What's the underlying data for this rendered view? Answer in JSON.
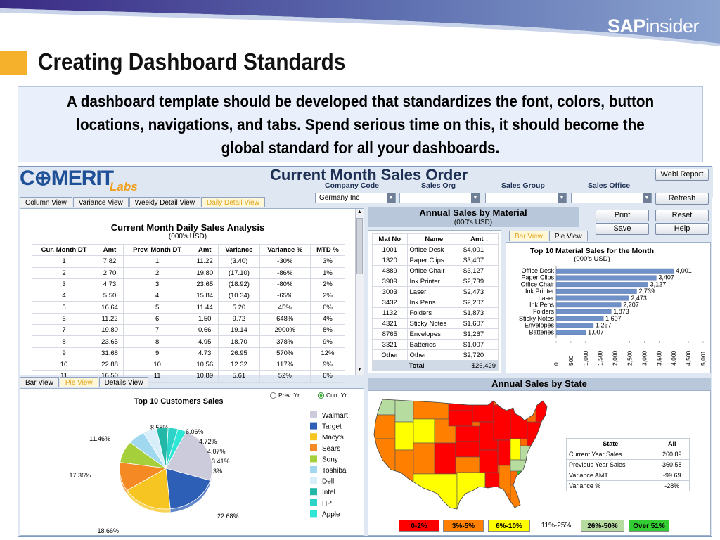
{
  "slide": {
    "brand_sap": "SAP",
    "brand_insider": "insider",
    "title": "Creating Dashboard Standards",
    "intro": "A dashboard template should be developed that standardizes the font, colors, button locations, navigations, and tabs. Spend serious time on this, it should become the global standard for all your dashboards."
  },
  "dashboard": {
    "logo_comerit": "C⊕MERIT",
    "logo_labs": "Labs",
    "title": "Current Month Sales Order",
    "filters": [
      {
        "label": "Company Code",
        "value": "Germany Inc"
      },
      {
        "label": "Sales Org",
        "value": ""
      },
      {
        "label": "Sales Group",
        "value": ""
      },
      {
        "label": "Sales Office",
        "value": ""
      }
    ],
    "buttons": {
      "webi_report": "Webi Report",
      "refresh": "Refresh",
      "print": "Print",
      "reset": "Reset",
      "save": "Save",
      "help": "Help"
    },
    "top_tabs": [
      "Column View",
      "Variance View",
      "Weekly Detail View",
      "Daily Detail View"
    ],
    "daily": {
      "title": "Current Month Daily Sales Analysis",
      "subtitle": "(000's USD)",
      "columns": [
        "Cur. Month DT",
        "Amt",
        "Prev. Month DT",
        "Amt",
        "Variance",
        "Variance %",
        "MTD %"
      ],
      "rows": [
        [
          "1",
          "7.82",
          "1",
          "11.22",
          "(3.40)",
          "-30%",
          "3%"
        ],
        [
          "2",
          "2.70",
          "2",
          "19.80",
          "(17.10)",
          "-86%",
          "1%"
        ],
        [
          "3",
          "4.73",
          "3",
          "23.65",
          "(18.92)",
          "-80%",
          "2%"
        ],
        [
          "4",
          "5.50",
          "4",
          "15.84",
          "(10.34)",
          "-65%",
          "2%"
        ],
        [
          "5",
          "16.64",
          "5",
          "11.44",
          "5.20",
          "45%",
          "6%"
        ],
        [
          "6",
          "11.22",
          "6",
          "1.50",
          "9.72",
          "648%",
          "4%"
        ],
        [
          "7",
          "19.80",
          "7",
          "0.66",
          "19.14",
          "2900%",
          "8%"
        ],
        [
          "8",
          "23.65",
          "8",
          "4.95",
          "18.70",
          "378%",
          "9%"
        ],
        [
          "9",
          "31.68",
          "9",
          "4.73",
          "26.95",
          "570%",
          "12%"
        ],
        [
          "10",
          "22.88",
          "10",
          "10.56",
          "12.32",
          "117%",
          "9%"
        ],
        [
          "11",
          "16.50",
          "11",
          "10.89",
          "5.61",
          "52%",
          "6%"
        ]
      ]
    },
    "material": {
      "heading": "Annual Sales by Material",
      "subheading": "(000's USD)",
      "columns": [
        "Mat No",
        "Name",
        "Amt"
      ],
      "sort_icon": "sort-arrow-down-icon",
      "rows": [
        [
          "1001",
          "Office Desk",
          "$4,001"
        ],
        [
          "1320",
          "Paper Clips",
          "$3,407"
        ],
        [
          "4889",
          "Office Chair",
          "$3,127"
        ],
        [
          "3909",
          "Ink Printer",
          "$2,739"
        ],
        [
          "3003",
          "Laser",
          "$2,473"
        ],
        [
          "3432",
          "Ink Pens",
          "$2,207"
        ],
        [
          "1132",
          "Folders",
          "$1,873"
        ],
        [
          "4321",
          "Sticky Notes",
          "$1,607"
        ],
        [
          "8765",
          "Envelopes",
          "$1,267"
        ],
        [
          "3321",
          "Batteries",
          "$1,007"
        ],
        [
          "Other",
          "Other",
          "$2,720"
        ]
      ],
      "total_label": "Total",
      "total_value": "$26,429",
      "tabs": [
        "Bar View",
        "Pie View"
      ]
    },
    "bottom_tabs": [
      "Bar View",
      "Pie View",
      "Details View"
    ],
    "customers": {
      "title": "Top 10 Customers Sales",
      "radio_prev": "Prev. Yr.",
      "radio_curr": "Curr. Yr."
    },
    "state": {
      "heading": "Annual Sales by State",
      "columns": [
        "State",
        "All"
      ],
      "rows": [
        [
          "Current Year Sales",
          "260.89"
        ],
        [
          "Previous Year Sales",
          "360.58"
        ],
        [
          "Variance AMT",
          "-99.69"
        ],
        [
          "Variance %",
          "-28%"
        ]
      ],
      "legend": [
        {
          "label": "0-2%",
          "color": "#ff0000"
        },
        {
          "label": "3%-5%",
          "color": "#ff8000"
        },
        {
          "label": "6%-10%",
          "color": "#ffff00"
        },
        {
          "label": "11%-25%",
          "color": "#ffffff"
        },
        {
          "label": "26%-50%",
          "color": "#b7dca0"
        },
        {
          "label": "Over 51%",
          "color": "#33cc33"
        }
      ]
    }
  },
  "chart_data": [
    {
      "type": "bar",
      "title": "Top 10 Material Sales for the Month",
      "subtitle": "(000's USD)",
      "orientation": "horizontal",
      "categories": [
        "Office Desk",
        "Paper Clips",
        "Office Chair",
        "Ink Printer",
        "Laser",
        "Ink Pens",
        "Folders",
        "Sticky Notes",
        "Envelopes",
        "Batteries"
      ],
      "values": [
        4001,
        3407,
        3127,
        2739,
        2473,
        2207,
        1873,
        1607,
        1267,
        1007
      ],
      "value_labels": [
        "4,001",
        "3,407",
        "3,127",
        "2,739",
        "2,473",
        "2,207",
        "1,873",
        "1,607",
        "1,267",
        "1,007"
      ],
      "xlim": [
        0,
        5001
      ],
      "xticks": [
        "0",
        "500",
        "1,000",
        "1,500",
        "2,000",
        "2,500",
        "3,000",
        "3,500",
        "4,000",
        "4,500",
        "5,001"
      ],
      "color": "#6f91c7"
    },
    {
      "type": "pie",
      "title": "Top 10 Customers Sales",
      "categories": [
        "Walmart",
        "Target",
        "Macy's",
        "Sears",
        "Sony",
        "Toshiba",
        "Dell",
        "Intel",
        "HP",
        "Apple"
      ],
      "values": [
        22.68,
        18.66,
        17.36,
        11.46,
        8.58,
        6.06,
        4.72,
        4.07,
        3.41,
        3
      ],
      "value_labels": [
        "22.68%",
        "18.66%",
        "17.36%",
        "11.46%",
        "8.58%",
        "6.06%",
        "4.72%",
        "4.07%",
        "3.41%",
        "3%"
      ],
      "colors": [
        "#cbcbdc",
        "#2e5fb7",
        "#f6c521",
        "#f58a25",
        "#a6cf3c",
        "#a0d9ef",
        "#d8eef8",
        "#22b7a6",
        "#2dd3c6",
        "#2ee6d6"
      ]
    }
  ]
}
